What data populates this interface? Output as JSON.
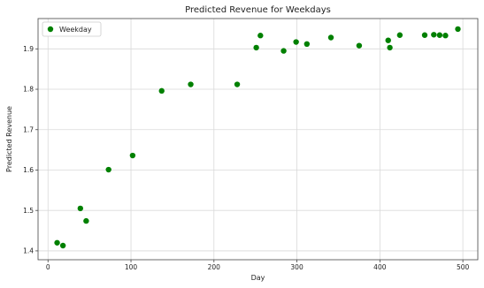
{
  "chart_data": {
    "type": "scatter",
    "title": "Predicted Revenue for Weekdays",
    "xlabel": "Day",
    "ylabel": "Predicted Revenue",
    "xlim": [
      -12,
      518
    ],
    "ylim": [
      1.378,
      1.975
    ],
    "xticks": [
      0,
      100,
      200,
      300,
      400,
      500
    ],
    "yticks": [
      1.4,
      1.5,
      1.6,
      1.7,
      1.8,
      1.9
    ],
    "grid": true,
    "legend_position": "top-left",
    "series": [
      {
        "name": "Weekday",
        "color": "#008000",
        "marker": "circle",
        "points": [
          {
            "x": 11,
            "y": 1.42
          },
          {
            "x": 18,
            "y": 1.413
          },
          {
            "x": 39,
            "y": 1.505
          },
          {
            "x": 46,
            "y": 1.474
          },
          {
            "x": 73,
            "y": 1.601
          },
          {
            "x": 102,
            "y": 1.636
          },
          {
            "x": 137,
            "y": 1.796
          },
          {
            "x": 172,
            "y": 1.812
          },
          {
            "x": 228,
            "y": 1.812
          },
          {
            "x": 251,
            "y": 1.903
          },
          {
            "x": 256,
            "y": 1.933
          },
          {
            "x": 284,
            "y": 1.895
          },
          {
            "x": 299,
            "y": 1.917
          },
          {
            "x": 312,
            "y": 1.912
          },
          {
            "x": 341,
            "y": 1.928
          },
          {
            "x": 375,
            "y": 1.908
          },
          {
            "x": 410,
            "y": 1.921
          },
          {
            "x": 412,
            "y": 1.903
          },
          {
            "x": 424,
            "y": 1.934
          },
          {
            "x": 454,
            "y": 1.934
          },
          {
            "x": 465,
            "y": 1.935
          },
          {
            "x": 472,
            "y": 1.934
          },
          {
            "x": 479,
            "y": 1.933
          },
          {
            "x": 494,
            "y": 1.949
          }
        ]
      }
    ]
  }
}
